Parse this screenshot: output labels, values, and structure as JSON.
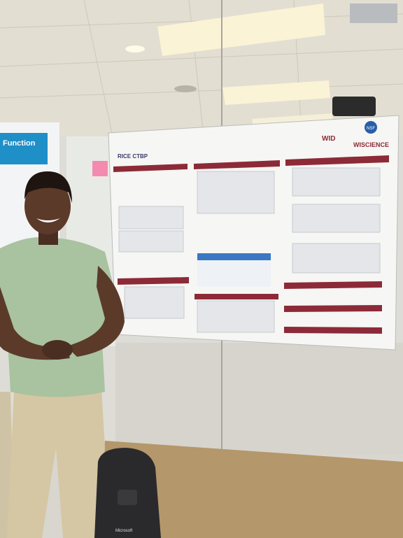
{
  "scene": {
    "left_poster": {
      "heading": "Function"
    },
    "poster": {
      "logos": [
        "RICE CTBP",
        "WID",
        "NSF",
        "WISCIENCE"
      ]
    },
    "backpack": {
      "brand": "Microsoft"
    }
  }
}
